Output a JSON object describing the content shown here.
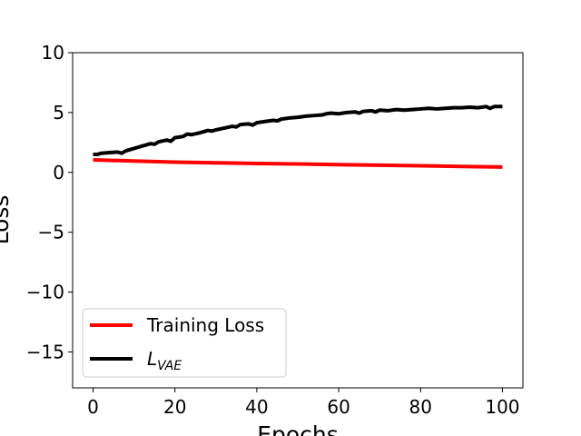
{
  "chart_data": {
    "type": "line",
    "title": "",
    "xlabel": "Epochs",
    "ylabel": "Loss",
    "xlim": [
      -5,
      105
    ],
    "ylim": [
      -18,
      10
    ],
    "xticks": [
      0,
      20,
      40,
      60,
      80,
      100
    ],
    "yticks": [
      10,
      5,
      0,
      -5,
      -10,
      -15
    ],
    "xtick_labels": [
      "0",
      "20",
      "40",
      "60",
      "80",
      "100"
    ],
    "ytick_labels": [
      "10",
      "5",
      "0",
      "−5",
      "−10",
      "−15"
    ],
    "grid": false,
    "legend": {
      "placement": "lower-left"
    },
    "series": [
      {
        "name": "Training Loss",
        "color": "#ff0000",
        "x": [
          0,
          10,
          20,
          30,
          40,
          50,
          60,
          70,
          80,
          90,
          100
        ],
        "y": [
          1.05,
          0.95,
          0.86,
          0.8,
          0.74,
          0.7,
          0.65,
          0.6,
          0.55,
          0.5,
          0.45
        ]
      },
      {
        "name": "L",
        "name_subscript": "VAE",
        "color": "#000000",
        "x": [
          0,
          1,
          2,
          4,
          6,
          7,
          8,
          10,
          12,
          14,
          15,
          16,
          18,
          19,
          20,
          22,
          23,
          24,
          26,
          28,
          29,
          30,
          32,
          34,
          35,
          36,
          38,
          39,
          40,
          42,
          44,
          45,
          46,
          48,
          50,
          52,
          54,
          56,
          57,
          58,
          60,
          62,
          64,
          65,
          66,
          68,
          69,
          70,
          72,
          74,
          76,
          78,
          80,
          82,
          84,
          86,
          88,
          90,
          92,
          94,
          96,
          97,
          98,
          100
        ],
        "y": [
          1.5,
          1.5,
          1.6,
          1.65,
          1.7,
          1.6,
          1.8,
          2.0,
          2.2,
          2.4,
          2.35,
          2.55,
          2.7,
          2.6,
          2.9,
          3.0,
          3.2,
          3.15,
          3.3,
          3.5,
          3.45,
          3.55,
          3.7,
          3.85,
          3.8,
          4.0,
          4.05,
          3.95,
          4.15,
          4.25,
          4.35,
          4.3,
          4.45,
          4.55,
          4.6,
          4.7,
          4.75,
          4.8,
          4.9,
          4.95,
          4.9,
          5.0,
          5.05,
          4.95,
          5.1,
          5.15,
          5.05,
          5.2,
          5.15,
          5.25,
          5.2,
          5.25,
          5.3,
          5.35,
          5.3,
          5.35,
          5.4,
          5.4,
          5.45,
          5.4,
          5.5,
          5.35,
          5.5,
          5.5
        ]
      }
    ]
  }
}
